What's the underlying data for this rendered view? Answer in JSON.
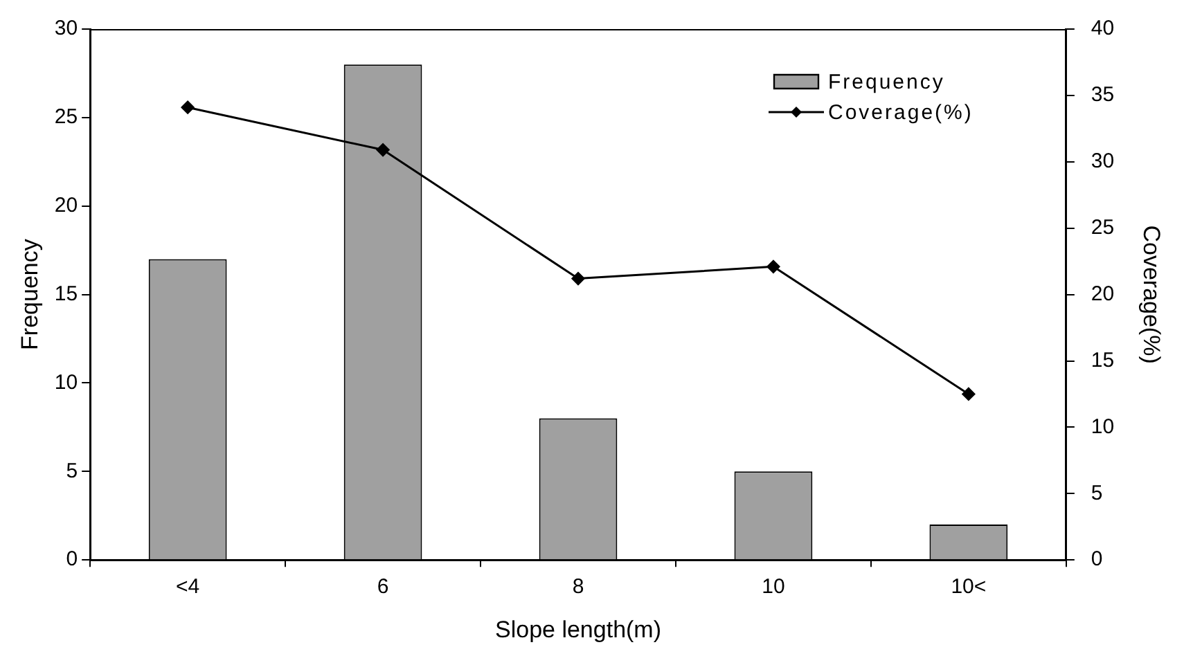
{
  "chart_data": {
    "type": "bar",
    "xlabel": "Slope length(m)",
    "ylabel": "Frequency",
    "y2label": "Coverage(%)",
    "categories": [
      "<4",
      "6",
      "8",
      "10",
      "10<"
    ],
    "series": [
      {
        "name": "Frequency",
        "color": "#a0a0a0",
        "values": [
          17,
          28,
          8,
          5,
          2
        ]
      },
      {
        "name": "Coverage(%)",
        "type": "line",
        "axis": "y2",
        "color": "#000000",
        "marker": "diamond",
        "values": [
          34.1,
          30.9,
          21.2,
          22.1,
          12.5
        ]
      }
    ],
    "ylim": [
      0,
      30
    ],
    "yticks": [
      0,
      5,
      10,
      15,
      20,
      25,
      30
    ],
    "y2lim": [
      0,
      40
    ],
    "y2ticks": [
      0,
      5,
      10,
      15,
      20,
      25,
      30,
      35,
      40
    ],
    "grid": false,
    "legend": "top right"
  }
}
